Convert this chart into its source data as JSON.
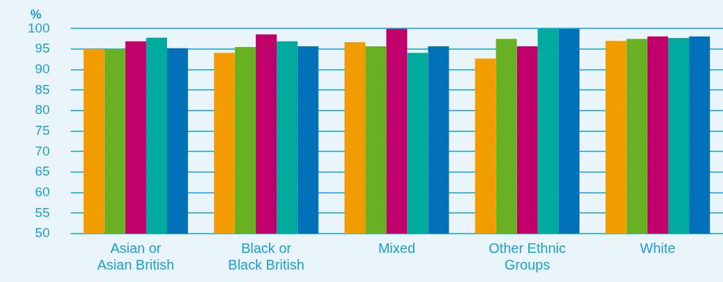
{
  "chart_data": {
    "type": "bar",
    "ylabel": "%",
    "categories": [
      "Asian or Asian British",
      "Black or Black British",
      "Mixed",
      "Other Ethnic Groups",
      "White"
    ],
    "series": [
      {
        "color": "#f39c00",
        "values": [
          95,
          94.1,
          96.7,
          92.7,
          97
        ]
      },
      {
        "color": "#6ab023",
        "values": [
          95,
          95.5,
          95.7,
          97.5,
          97.5
        ]
      },
      {
        "color": "#c0006a",
        "values": [
          96.9,
          98.6,
          100,
          95.7,
          98.1
        ]
      },
      {
        "color": "#00a99d",
        "values": [
          97.8,
          96.9,
          94.1,
          100,
          97.7
        ]
      },
      {
        "color": "#0071b9",
        "values": [
          95.2,
          95.7,
          95.7,
          100,
          98.1
        ]
      }
    ],
    "ylim": [
      50,
      100
    ],
    "yticks": [
      50,
      55,
      60,
      65,
      70,
      75,
      80,
      85,
      90,
      95,
      100
    ],
    "grid": "y",
    "legend": false
  }
}
